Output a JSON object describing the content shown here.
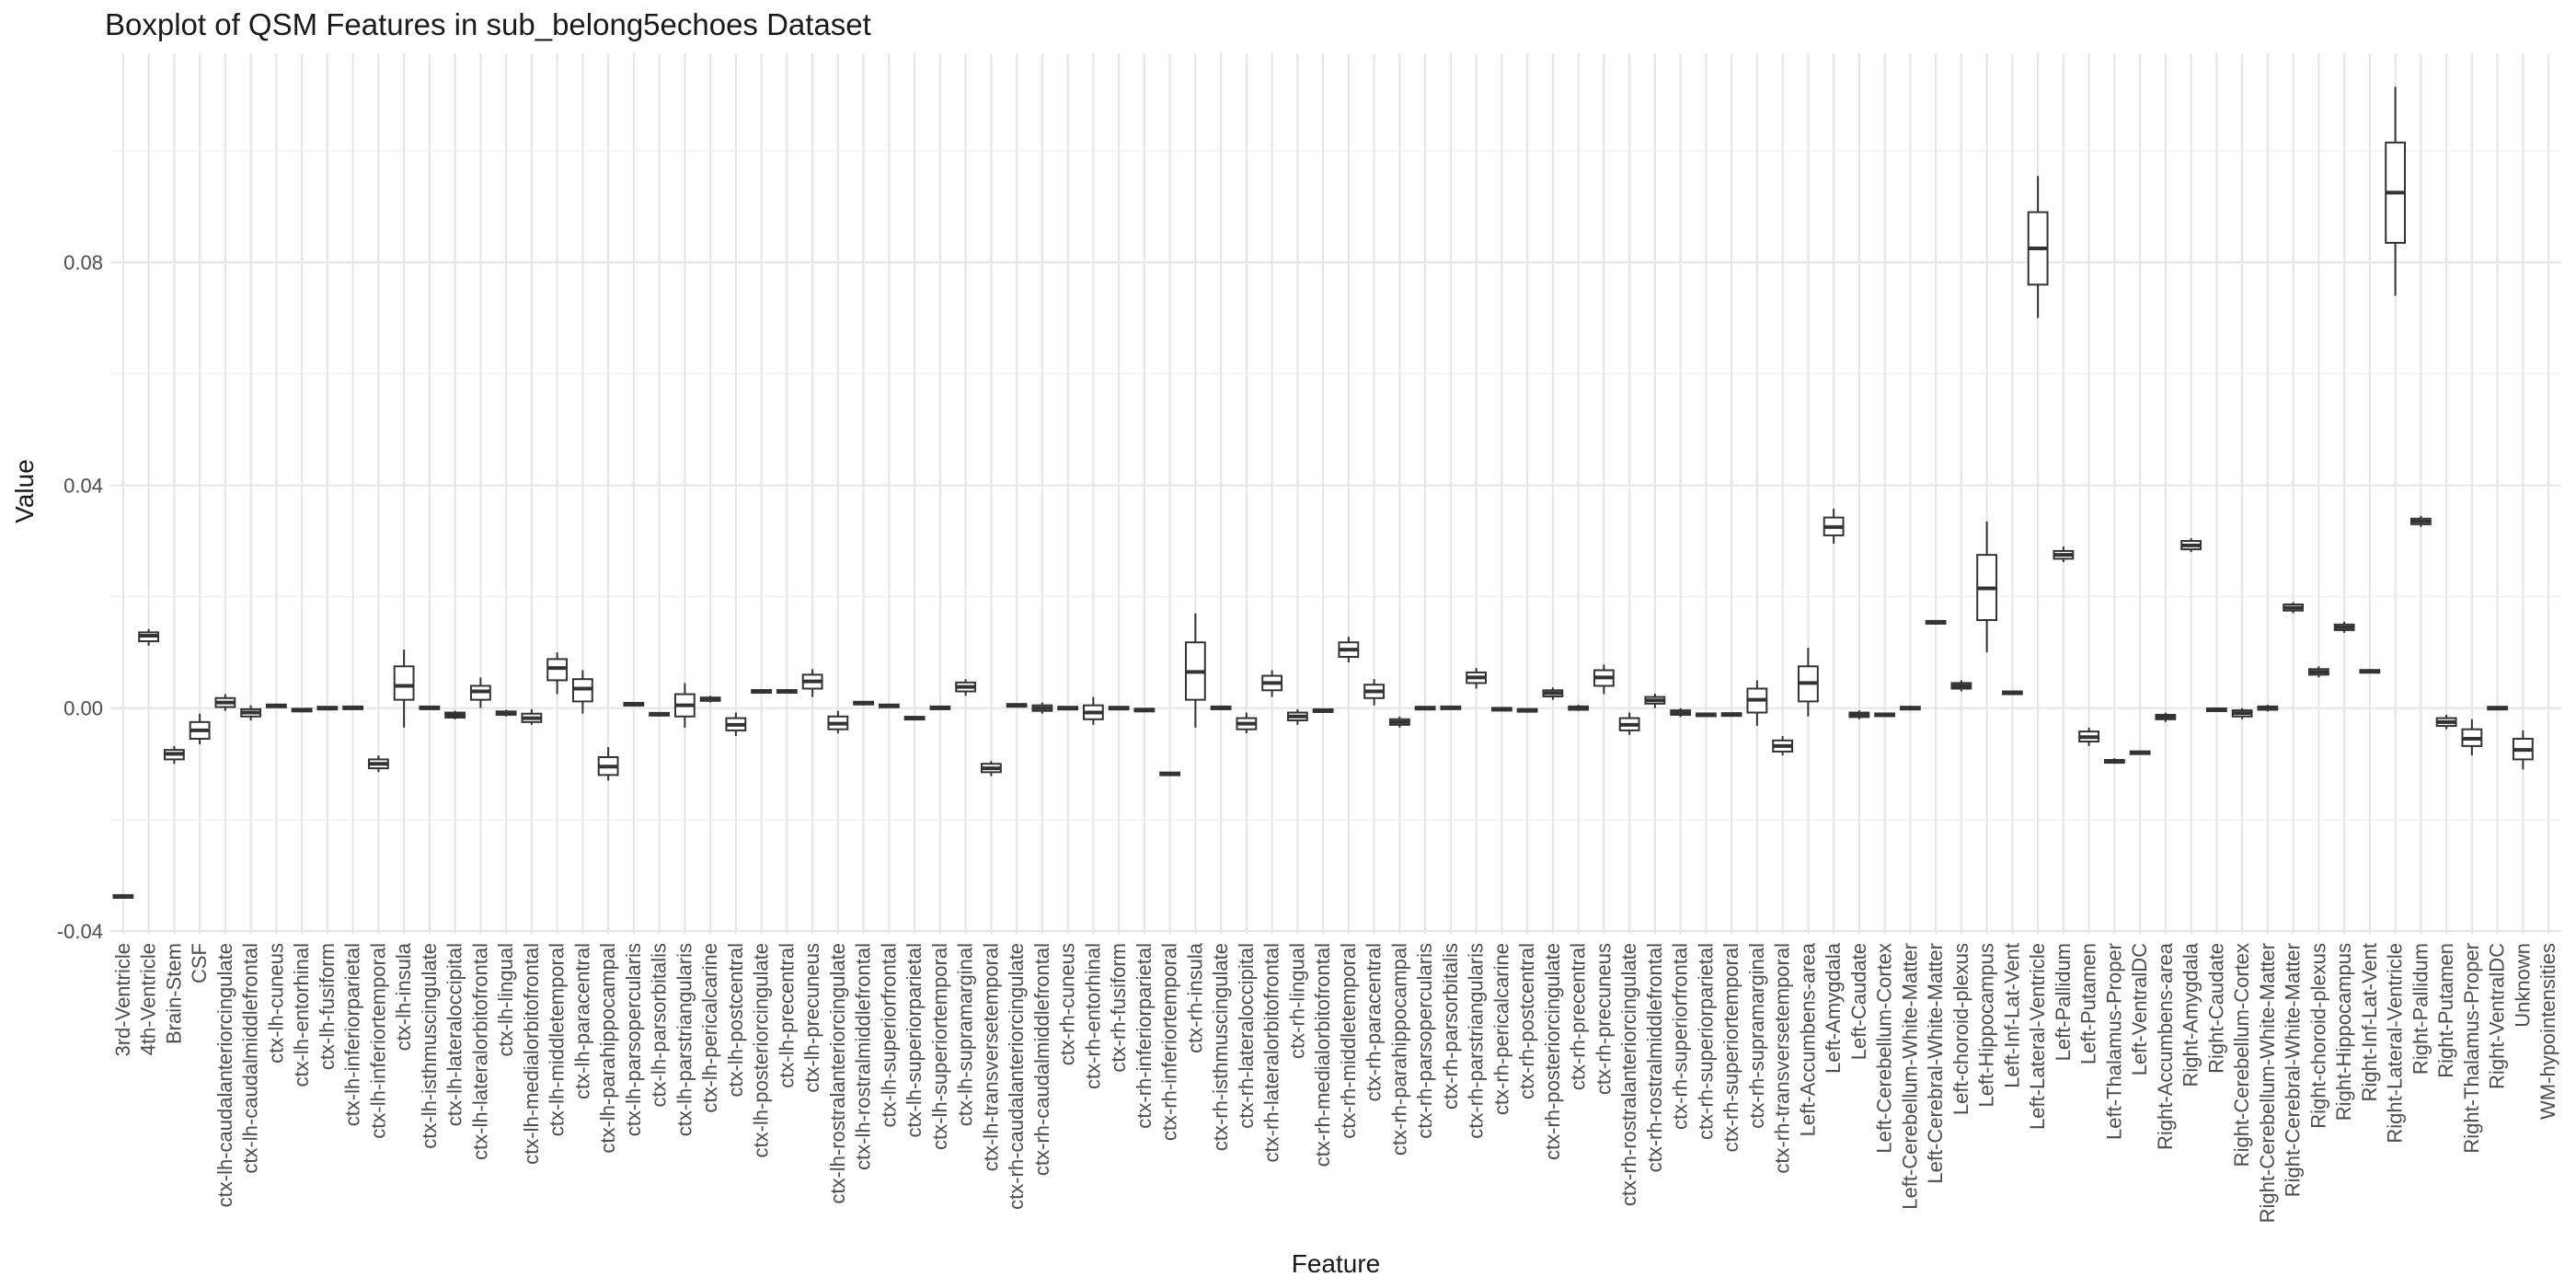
{
  "chart_data": {
    "type": "boxplot",
    "title": "Boxplot of QSM Features in sub_belong5echoes Dataset",
    "xlabel": "Feature",
    "ylabel": "Value",
    "ylim": [
      -0.0405,
      0.1175
    ],
    "yticks": [
      -0.04,
      0.0,
      0.04,
      0.08
    ],
    "ytick_labels": [
      "-0.04",
      "0.00",
      "0.04",
      "0.08"
    ],
    "grid": true,
    "categories": [
      "3rd-Ventricle",
      "4th-Ventricle",
      "Brain-Stem",
      "CSF",
      "ctx-lh-caudalanteriorcingulate",
      "ctx-lh-caudalmiddlefrontal",
      "ctx-lh-cuneus",
      "ctx-lh-entorhinal",
      "ctx-lh-fusiform",
      "ctx-lh-inferiorparietal",
      "ctx-lh-inferiortemporal",
      "ctx-lh-insula",
      "ctx-lh-isthmuscingulate",
      "ctx-lh-lateraloccipital",
      "ctx-lh-lateralorbitofrontal",
      "ctx-lh-lingual",
      "ctx-lh-medialorbitofrontal",
      "ctx-lh-middletemporal",
      "ctx-lh-paracentral",
      "ctx-lh-parahippocampal",
      "ctx-lh-parsopercularis",
      "ctx-lh-parsorbitalis",
      "ctx-lh-parstriangularis",
      "ctx-lh-pericalcarine",
      "ctx-lh-postcentral",
      "ctx-lh-posteriorcingulate",
      "ctx-lh-precentral",
      "ctx-lh-precuneus",
      "ctx-lh-rostralanteriorcingulate",
      "ctx-lh-rostralmiddlefrontal",
      "ctx-lh-superiorfrontal",
      "ctx-lh-superiorparietal",
      "ctx-lh-superiortemporal",
      "ctx-lh-supramarginal",
      "ctx-lh-transversetemporal",
      "ctx-rh-caudalanteriorcingulate",
      "ctx-rh-caudalmiddlefrontal",
      "ctx-rh-cuneus",
      "ctx-rh-entorhinal",
      "ctx-rh-fusiform",
      "ctx-rh-inferiorparietal",
      "ctx-rh-inferiortemporal",
      "ctx-rh-insula",
      "ctx-rh-isthmuscingulate",
      "ctx-rh-lateraloccipital",
      "ctx-rh-lateralorbitofrontal",
      "ctx-rh-lingual",
      "ctx-rh-medialorbitofrontal",
      "ctx-rh-middletemporal",
      "ctx-rh-paracentral",
      "ctx-rh-parahippocampal",
      "ctx-rh-parsopercularis",
      "ctx-rh-parsorbitalis",
      "ctx-rh-parstriangularis",
      "ctx-rh-pericalcarine",
      "ctx-rh-postcentral",
      "ctx-rh-posteriorcingulate",
      "ctx-rh-precentral",
      "ctx-rh-precuneus",
      "ctx-rh-rostralanteriorcingulate",
      "ctx-rh-rostralmiddlefrontal",
      "ctx-rh-superiorfrontal",
      "ctx-rh-superiorparietal",
      "ctx-rh-superiortemporal",
      "ctx-rh-supramarginal",
      "ctx-rh-transversetemporal",
      "Left-Accumbens-area",
      "Left-Amygdala",
      "Left-Caudate",
      "Left-Cerebellum-Cortex",
      "Left-Cerebellum-White-Matter",
      "Left-Cerebral-White-Matter",
      "Left-choroid-plexus",
      "Left-Hippocampus",
      "Left-Inf-Lat-Vent",
      "Left-Lateral-Ventricle",
      "Left-Pallidum",
      "Left-Putamen",
      "Left-Thalamus-Proper",
      "Left-VentralDC",
      "Right-Accumbens-area",
      "Right-Amygdala",
      "Right-Caudate",
      "Right-Cerebellum-Cortex",
      "Right-Cerebellum-White-Matter",
      "Right-Cerebral-White-Matter",
      "Right-choroid-plexus",
      "Right-Hippocampus",
      "Right-Inf-Lat-Vent",
      "Right-Lateral-Ventricle",
      "Right-Pallidum",
      "Right-Putamen",
      "Right-Thalamus-Proper",
      "Right-VentralDC",
      "Unknown",
      "WM-hypointensities"
    ],
    "boxes": [
      [
        -0.0338,
        -0.0338,
        -0.0338,
        -0.0338,
        -0.0338
      ],
      [
        0.0112,
        0.012,
        0.013,
        0.0136,
        0.0142
      ],
      [
        -0.01,
        -0.0092,
        -0.0082,
        -0.0075,
        -0.0068
      ],
      [
        -0.0065,
        -0.0055,
        -0.004,
        -0.0025,
        -0.001
      ],
      [
        -0.0005,
        0.0002,
        0.001,
        0.0018,
        0.0025
      ],
      [
        -0.0022,
        -0.0015,
        -0.0008,
        -0.0002,
        0.0005
      ],
      [
        0.0002,
        0.0003,
        0.0004,
        0.0005,
        0.0006
      ],
      [
        -0.0006,
        -0.0005,
        -0.0003,
        -0.0002,
        -0.0001
      ],
      [
        -0.0002,
        -0.0001,
        0.0,
        0.0001,
        0.0002
      ],
      [
        -0.0001,
        0.0,
        0.0001,
        0.0001,
        0.0002
      ],
      [
        -0.0115,
        -0.0108,
        -0.01,
        -0.0092,
        -0.0085
      ],
      [
        -0.0035,
        0.0015,
        0.004,
        0.0075,
        0.0105
      ],
      [
        0.0,
        0.0,
        0.0001,
        0.0001,
        0.0002
      ],
      [
        -0.002,
        -0.0017,
        -0.0012,
        -0.0008,
        -0.0005
      ],
      [
        0.0,
        0.0015,
        0.003,
        0.004,
        0.0055
      ],
      [
        -0.0015,
        -0.0012,
        -0.0009,
        -0.0006,
        -0.0003
      ],
      [
        -0.003,
        -0.0025,
        -0.0018,
        -0.001,
        -0.0002
      ],
      [
        0.0025,
        0.005,
        0.0072,
        0.0088,
        0.01
      ],
      [
        -0.001,
        0.0012,
        0.0035,
        0.0052,
        0.0068
      ],
      [
        -0.013,
        -0.012,
        -0.0105,
        -0.0088,
        -0.007
      ],
      [
        0.0005,
        0.0006,
        0.0007,
        0.0008,
        0.001
      ],
      [
        -0.0015,
        -0.0013,
        -0.0011,
        -0.0009,
        -0.0007
      ],
      [
        -0.0035,
        -0.0015,
        0.0005,
        0.0025,
        0.0045
      ],
      [
        0.001,
        0.0013,
        0.0016,
        0.0019,
        0.0022
      ],
      [
        -0.005,
        -0.004,
        -0.003,
        -0.0018,
        -0.0008
      ],
      [
        0.0028,
        0.0029,
        0.003,
        0.0031,
        0.0032
      ],
      [
        0.0028,
        0.0029,
        0.003,
        0.0031,
        0.0032
      ],
      [
        0.002,
        0.0035,
        0.0048,
        0.006,
        0.007
      ],
      [
        -0.0045,
        -0.0038,
        -0.0028,
        -0.0015,
        -0.0005
      ],
      [
        0.0005,
        0.0007,
        0.0009,
        0.0011,
        0.0013
      ],
      [
        0.0002,
        0.0003,
        0.0004,
        0.0005,
        0.0006
      ],
      [
        -0.002,
        -0.0019,
        -0.0018,
        -0.0017,
        -0.0016
      ],
      [
        -0.0001,
        0.0,
        0.0,
        0.0001,
        0.0001
      ],
      [
        0.0022,
        0.003,
        0.0038,
        0.0046,
        0.0052
      ],
      [
        -0.0122,
        -0.0115,
        -0.0108,
        -0.01,
        -0.0095
      ],
      [
        0.0003,
        0.0004,
        0.0005,
        0.0006,
        0.0007
      ],
      [
        -0.001,
        -0.0005,
        0.0,
        0.0005,
        0.001
      ],
      [
        -0.0002,
        -0.0001,
        0.0,
        0.0001,
        0.0002
      ],
      [
        -0.003,
        -0.002,
        -0.0008,
        0.0005,
        0.002
      ],
      [
        -0.0002,
        -0.0001,
        0.0,
        0.0001,
        0.0002
      ],
      [
        -0.0006,
        -0.0005,
        -0.0003,
        -0.0002,
        -0.0001
      ],
      [
        -0.012,
        -0.0119,
        -0.0118,
        -0.0117,
        -0.0116
      ],
      [
        -0.0035,
        0.0015,
        0.0065,
        0.0118,
        0.017
      ],
      [
        -0.0001,
        0.0,
        0.0,
        0.0001,
        0.0001
      ],
      [
        -0.0045,
        -0.0038,
        -0.0028,
        -0.0018,
        -0.0008
      ],
      [
        0.002,
        0.0032,
        0.0045,
        0.0058,
        0.0068
      ],
      [
        -0.003,
        -0.0022,
        -0.0015,
        -0.0008,
        -0.0002
      ],
      [
        -0.0008,
        -0.0006,
        -0.0005,
        -0.0003,
        -0.0002
      ],
      [
        0.0082,
        0.0092,
        0.0105,
        0.0118,
        0.0128
      ],
      [
        0.0005,
        0.0018,
        0.003,
        0.0042,
        0.0052
      ],
      [
        -0.0035,
        -0.003,
        -0.0025,
        -0.002,
        -0.0015
      ],
      [
        -0.0002,
        -0.0001,
        0.0,
        0.0001,
        0.0002
      ],
      [
        0.0,
        0.0,
        0.0001,
        0.0001,
        0.0002
      ],
      [
        0.0035,
        0.0045,
        0.0055,
        0.0064,
        0.0072
      ],
      [
        -0.0004,
        -0.0003,
        -0.0002,
        -0.0001,
        0.0
      ],
      [
        -0.0006,
        -0.0005,
        -0.0004,
        -0.0003,
        -0.0002
      ],
      [
        0.0015,
        0.0021,
        0.0027,
        0.0032,
        0.0037
      ],
      [
        -0.0005,
        -0.0003,
        0.0,
        0.0003,
        0.0006
      ],
      [
        0.0025,
        0.004,
        0.0055,
        0.0068,
        0.0078
      ],
      [
        -0.0048,
        -0.004,
        -0.003,
        -0.0018,
        -0.0008
      ],
      [
        0.0,
        0.0008,
        0.0014,
        0.002,
        0.0026
      ],
      [
        -0.0016,
        -0.0012,
        -0.0008,
        -0.0004,
        0.0
      ],
      [
        -0.0014,
        -0.0013,
        -0.0012,
        -0.0011,
        -0.001
      ],
      [
        -0.0014,
        -0.0013,
        -0.0011,
        -0.001,
        -0.0009
      ],
      [
        -0.0032,
        -0.0008,
        0.0015,
        0.0035,
        0.005
      ],
      [
        -0.0085,
        -0.0078,
        -0.0068,
        -0.0058,
        -0.005
      ],
      [
        -0.0015,
        0.0012,
        0.0045,
        0.0075,
        0.0108
      ],
      [
        0.0295,
        0.031,
        0.0325,
        0.0342,
        0.0358
      ],
      [
        -0.002,
        -0.0016,
        -0.0012,
        -0.0008,
        -0.0004
      ],
      [
        -0.0014,
        -0.0013,
        -0.0012,
        -0.0011,
        -0.001
      ],
      [
        -0.0004,
        -0.0002,
        0.0,
        0.0002,
        0.0004
      ],
      [
        0.015,
        0.0152,
        0.0154,
        0.0156,
        0.0158
      ],
      [
        0.003,
        0.0035,
        0.004,
        0.0045,
        0.005
      ],
      [
        0.01,
        0.0158,
        0.0215,
        0.0275,
        0.0335
      ],
      [
        0.0025,
        0.0026,
        0.0028,
        0.0029,
        0.003
      ],
      [
        0.07,
        0.076,
        0.0825,
        0.089,
        0.0955
      ],
      [
        0.0262,
        0.0268,
        0.0275,
        0.0282,
        0.029
      ],
      [
        -0.0068,
        -0.006,
        -0.0052,
        -0.0042,
        -0.0035
      ],
      [
        -0.01,
        -0.0098,
        -0.0096,
        -0.0093,
        -0.009
      ],
      [
        -0.0082,
        -0.0081,
        -0.008,
        -0.0079,
        -0.0078
      ],
      [
        -0.0025,
        -0.002,
        -0.0016,
        -0.0012,
        -0.0008
      ],
      [
        0.028,
        0.0285,
        0.0292,
        0.03,
        0.0305
      ],
      [
        -0.0005,
        -0.0004,
        -0.0003,
        -0.0002,
        -0.0001
      ],
      [
        -0.002,
        -0.0015,
        -0.0009,
        -0.0004,
        0.0
      ],
      [
        -0.0006,
        -0.0003,
        0.0,
        0.0003,
        0.0006
      ],
      [
        0.017,
        0.0175,
        0.018,
        0.0186,
        0.019
      ],
      [
        0.0055,
        0.006,
        0.0065,
        0.007,
        0.0075
      ],
      [
        0.0135,
        0.014,
        0.0145,
        0.015,
        0.0155
      ],
      [
        0.0062,
        0.0064,
        0.0066,
        0.0068,
        0.007
      ],
      [
        0.074,
        0.0835,
        0.0925,
        0.1015,
        0.1115
      ],
      [
        0.0325,
        0.033,
        0.0335,
        0.034,
        0.0345
      ],
      [
        -0.0038,
        -0.0032,
        -0.0025,
        -0.0018,
        -0.0012
      ],
      [
        -0.0085,
        -0.0068,
        -0.0055,
        -0.0038,
        -0.002
      ],
      [
        -0.0002,
        -0.0001,
        0.0,
        0.0001,
        0.0002
      ],
      [
        -0.011,
        -0.0092,
        -0.0075,
        -0.0055,
        -0.004
      ]
    ],
    "box_format": [
      "min",
      "q1",
      "median",
      "q3",
      "max"
    ]
  }
}
